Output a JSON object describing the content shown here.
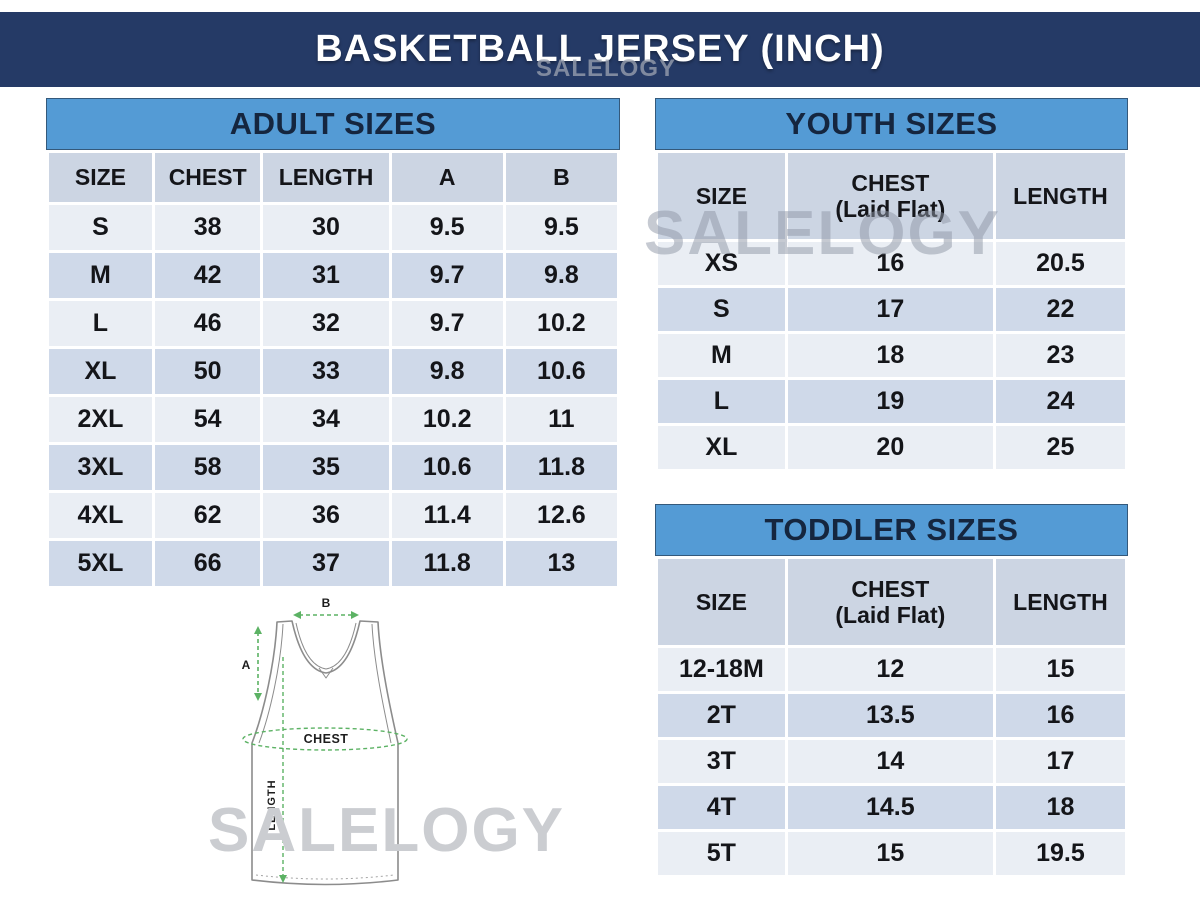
{
  "header": {
    "title": "BASKETBALL JERSEY (INCH)"
  },
  "watermark": {
    "text": "SALELOGY"
  },
  "tables": {
    "adult": {
      "title": "ADULT SIZES",
      "columns": [
        "SIZE",
        "CHEST",
        "LENGTH",
        "A",
        "B"
      ],
      "rows": [
        [
          "S",
          "38",
          "30",
          "9.5",
          "9.5"
        ],
        [
          "M",
          "42",
          "31",
          "9.7",
          "9.8"
        ],
        [
          "L",
          "46",
          "32",
          "9.7",
          "10.2"
        ],
        [
          "XL",
          "50",
          "33",
          "9.8",
          "10.6"
        ],
        [
          "2XL",
          "54",
          "34",
          "10.2",
          "11"
        ],
        [
          "3XL",
          "58",
          "35",
          "10.6",
          "11.8"
        ],
        [
          "4XL",
          "62",
          "36",
          "11.4",
          "12.6"
        ],
        [
          "5XL",
          "66",
          "37",
          "11.8",
          "13"
        ]
      ]
    },
    "youth": {
      "title": "YOUTH SIZES",
      "columns": [
        [
          "SIZE"
        ],
        [
          "CHEST",
          "(Laid Flat)"
        ],
        [
          "LENGTH"
        ]
      ],
      "rows": [
        [
          "XS",
          "16",
          "20.5"
        ],
        [
          "S",
          "17",
          "22"
        ],
        [
          "M",
          "18",
          "23"
        ],
        [
          "L",
          "19",
          "24"
        ],
        [
          "XL",
          "20",
          "25"
        ]
      ]
    },
    "toddler": {
      "title": "TODDLER SIZES",
      "columns": [
        [
          "SIZE"
        ],
        [
          "CHEST",
          "(Laid Flat)"
        ],
        [
          "LENGTH"
        ]
      ],
      "rows": [
        [
          "12-18M",
          "12",
          "15"
        ],
        [
          "2T",
          "13.5",
          "16"
        ],
        [
          "3T",
          "14",
          "17"
        ],
        [
          "4T",
          "14.5",
          "18"
        ],
        [
          "5T",
          "15",
          "19.5"
        ]
      ]
    }
  },
  "diagram": {
    "label_a": "A",
    "label_b": "B",
    "label_chest": "CHEST",
    "label_length": "LENGTH"
  },
  "colors": {
    "navy": "#253A66",
    "table_title_blue": "#549BD5",
    "column_header_bg": "#CCD5E3",
    "row_light": "#EAEEF4",
    "row_band": "#CFD9E9",
    "measure_green": "#5CB264",
    "watermark_gray": "#CBCDD1"
  }
}
